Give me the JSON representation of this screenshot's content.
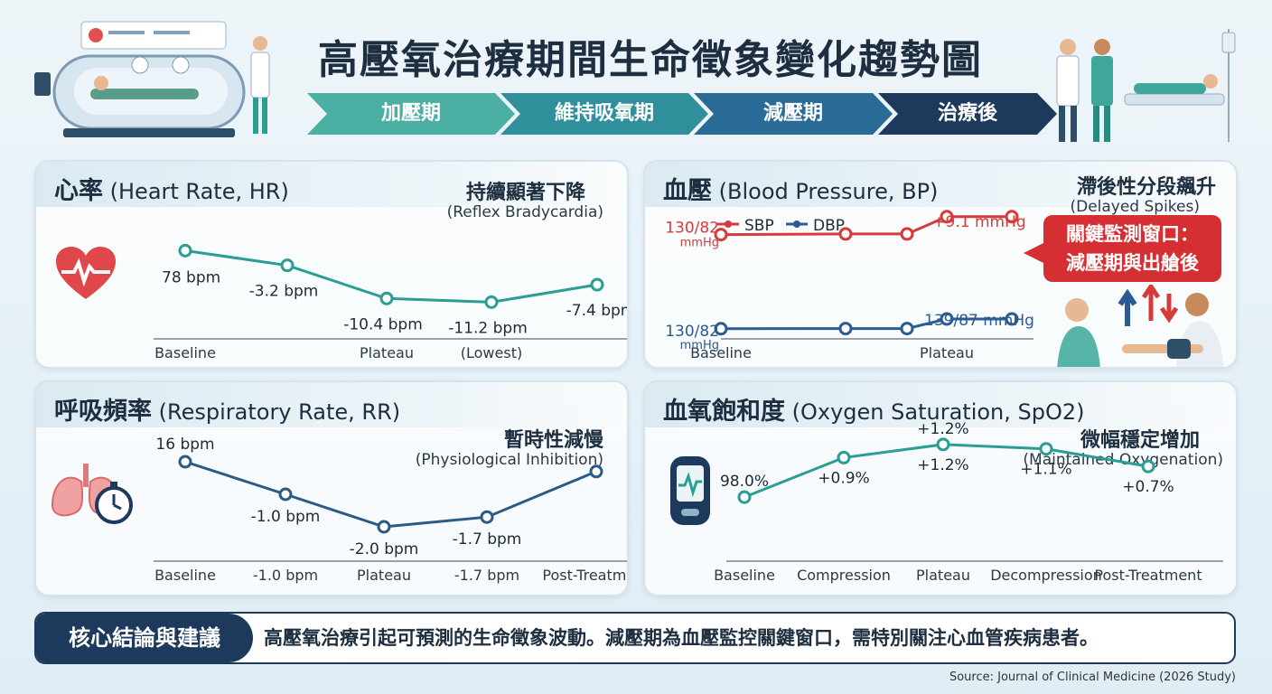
{
  "title": "高壓氧治療期間生命徵象變化趨勢圖",
  "phases": [
    "加壓期",
    "維持吸氧期",
    "減壓期",
    "治療後"
  ],
  "colors": {
    "teal": "#2a9d94",
    "navy": "#2a5b86",
    "sbp": "#d63a3a",
    "dbp": "#2c5a92",
    "accent_dark": "#1d3a5c"
  },
  "hr": {
    "title_zh": "心率",
    "title_en": "(Heart Rate, HR)",
    "note_zh": "持續顯著下降",
    "note_en": "(Reflex Bradycardia)"
  },
  "bp": {
    "title_zh": "血壓",
    "title_en": "(Blood Pressure, BP)",
    "note_zh": "滯後性分段飆升",
    "note_en": "(Delayed Spikes)",
    "callout_line1": "關鍵監測窗口：",
    "callout_line2": "減壓期與出艙後",
    "legend_sbp": "SBP",
    "legend_dbp": "DBP",
    "baseline_sbp_label": "130/82",
    "baseline_sbp_unit": "mmHg",
    "baseline_dbp_label": "130/82",
    "baseline_dbp_unit": "mmHg",
    "rise_label": "+9.1 mmHg",
    "end_label": "139/87 mmHg"
  },
  "rr": {
    "title_zh": "呼吸頻率",
    "title_en": "(Respiratory Rate, RR)",
    "note_zh": "暫時性減慢",
    "note_en": "(Physiological Inhibition)"
  },
  "spo2": {
    "title_zh": "血氧飽和度",
    "title_en": "(Oxygen Saturation, SpO2)",
    "note_zh": "微幅穩定增加",
    "note_en": "(Maintained Oxygenation)"
  },
  "conclusion": {
    "label": "核心結論與建議",
    "text": "高壓氧治療引起可預測的生命徵象波動。減壓期為血壓監控關鍵窗口，需特別關注心血管疾病患者。"
  },
  "source": "Source: Journal of Clinical Medicine (2026 Study)",
  "chart_data": [
    {
      "id": "hr",
      "type": "line",
      "x_tick_labels": [
        "Baseline",
        "",
        "Plateau",
        "(Lowest)",
        ""
      ],
      "series": [
        {
          "values": [
            78,
            74.8,
            67.6,
            66.8,
            70.6
          ]
        }
      ],
      "data_labels": [
        "78 bpm",
        "-3.2 bpm",
        "-10.4 bpm",
        "-11.2 bpm",
        "-7.4 bpm"
      ],
      "ylim": [
        60,
        82
      ]
    },
    {
      "id": "bp",
      "type": "line",
      "x_tick_labels": [
        "Baseline",
        "",
        "",
        "Plateau",
        ""
      ],
      "series": [
        {
          "name": "SBP",
          "values": [
            130,
            130.3,
            130.3,
            139.1,
            139.1
          ]
        },
        {
          "name": "DBP",
          "values": [
            82,
            82.1,
            82.1,
            87,
            87
          ]
        }
      ],
      "ylim": [
        75,
        145
      ]
    },
    {
      "id": "rr",
      "type": "line",
      "x_tick_labels": [
        "Baseline",
        "-1.0 bpm",
        "Plateau",
        "-1.7 bpm",
        "Post-Treatment"
      ],
      "series": [
        {
          "values": [
            16,
            15.0,
            14.0,
            14.3,
            15.7
          ]
        }
      ],
      "data_labels": [
        "16 bpm",
        "-1.0 bpm",
        "-2.0 bpm",
        "-1.7 bpm",
        ""
      ],
      "ylim": [
        12,
        17
      ]
    },
    {
      "id": "spo2",
      "type": "line",
      "x_tick_labels": [
        "Baseline",
        "Compression",
        "Plateau",
        "Decompression",
        "Post-Treatment"
      ],
      "series": [
        {
          "values": [
            98.0,
            98.9,
            99.2,
            99.1,
            98.7
          ]
        }
      ],
      "data_labels_above": [
        "98.0%",
        "",
        "+1.2%",
        "",
        ""
      ],
      "data_labels_below": [
        "",
        "+0.9%",
        "+1.2%",
        "+1.1%",
        "+0.7%"
      ],
      "ylim": [
        96.5,
        100
      ]
    }
  ]
}
